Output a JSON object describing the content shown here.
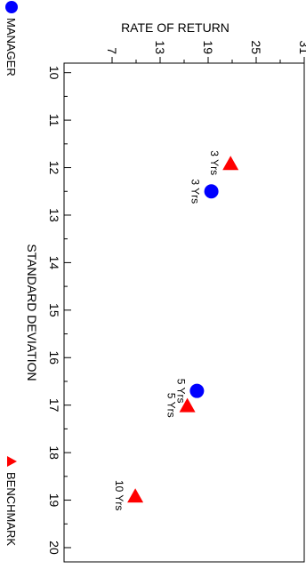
{
  "chart_data": {
    "type": "scatter",
    "title": "",
    "xlabel": "STANDARD DEVIATION",
    "ylabel": "RATE OF RETURN",
    "xlim": [
      9.8,
      20.3
    ],
    "ylim": [
      1,
      31
    ],
    "x_ticks": [
      10,
      11,
      12,
      13,
      14,
      15,
      16,
      17,
      18,
      19,
      20
    ],
    "y_ticks": [
      7,
      13,
      19,
      25,
      31
    ],
    "grid": false,
    "legend_position": "bottom",
    "orientation": "rotated 90 degrees clockwise",
    "series": [
      {
        "name": "MANAGER",
        "marker": "circle",
        "color": "#0000ff",
        "points": [
          {
            "x": 12.5,
            "y": 19.4,
            "label": "3 Yrs"
          },
          {
            "x": 16.7,
            "y": 17.6,
            "label": "5 Yrs"
          }
        ]
      },
      {
        "name": "BENCHMARK",
        "marker": "triangle",
        "color": "#ff0000",
        "points": [
          {
            "x": 11.9,
            "y": 21.8,
            "label": "3 Yrs"
          },
          {
            "x": 17.0,
            "y": 16.4,
            "label": "5 Yrs"
          },
          {
            "x": 18.9,
            "y": 9.9,
            "label": "10 Yrs"
          }
        ]
      }
    ]
  }
}
